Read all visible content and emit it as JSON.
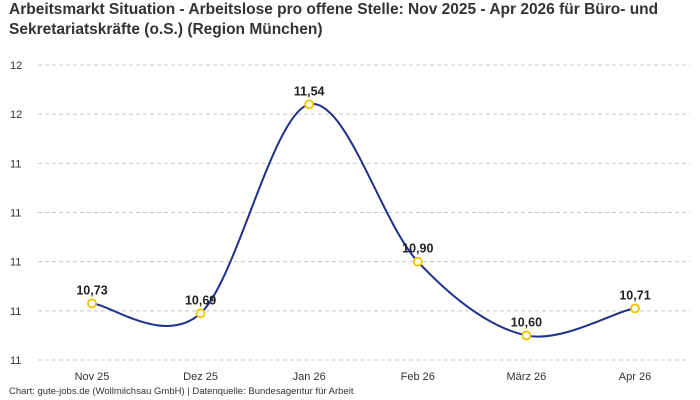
{
  "chart_data": {
    "type": "line",
    "title": "Arbeitsmarkt Situation - Arbeitslose pro offene Stelle: Nov 2025 - Apr 2026 für Büro- und Sekretariatskräfte (o.S.) (Region München)",
    "categories": [
      "Nov 25",
      "Dez 25",
      "Jan 26",
      "Feb 26",
      "März 26",
      "Apr 26"
    ],
    "series": [
      {
        "values": [
          10.73,
          10.69,
          11.54,
          10.9,
          10.6,
          10.71
        ],
        "labels": [
          "10,73",
          "10,69",
          "11,54",
          "10,90",
          "10,60",
          "10,71"
        ]
      }
    ],
    "y_ticks": [
      10.5,
      10.7,
      10.9,
      11.1,
      11.3,
      11.5,
      11.7
    ],
    "y_tick_labels": [
      "11",
      "11",
      "11",
      "11",
      "11",
      "12",
      "12"
    ],
    "ylim": [
      10.5,
      11.7
    ],
    "xlabel": "",
    "ylabel": "",
    "grid": true,
    "line_color": "#1f2f8c",
    "marker_fill": "#ffffff",
    "marker_stroke": "#f2c200",
    "grid_color": "#c8c8c8"
  },
  "footer": "Chart: gute-jobs.de (Wollmilchsau GmbH) | Datenquelle: Bundesagentur für Arbeit"
}
